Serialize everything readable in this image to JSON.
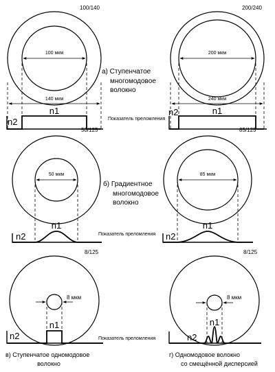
{
  "panel_a": {
    "caption": [
      "а)  Ступенчатое",
      "многомодовое",
      "волокно"
    ],
    "left": {
      "spec": "100/140",
      "core": "100 мкм",
      "clad": "140 мкм",
      "n1": "n1",
      "n2": "n2"
    },
    "right": {
      "spec": "200/240",
      "core": "200 мкм",
      "clad": "240 мкм",
      "n1": "n1",
      "n2": "n2"
    },
    "index_label": "Показатель преломления"
  },
  "panel_b": {
    "caption": [
      "б)  Градиентное",
      "многомодовое",
      "волокно"
    ],
    "left": {
      "spec": "50/125",
      "core": "50 мкм",
      "n1": "n1",
      "n2": "n2"
    },
    "right": {
      "spec": "85/125",
      "core": "85 мкм",
      "n1": "n1",
      "n2": "n2"
    },
    "index_label": "Показатель преломления"
  },
  "panel_c": {
    "left": {
      "spec": "8/125",
      "core": "8 мкм",
      "n1": "n1",
      "n2": "n2",
      "caption": [
        "в)  Ступенчатое одномодовое",
        "волокно"
      ]
    },
    "right": {
      "spec": "8/125",
      "core": "8 мкм",
      "n1": "n1",
      "n2": "n2",
      "caption": [
        "г)  Одномодовое волокно",
        "со смещённой дисперсией"
      ]
    },
    "index_label": "Показатель преломления"
  }
}
